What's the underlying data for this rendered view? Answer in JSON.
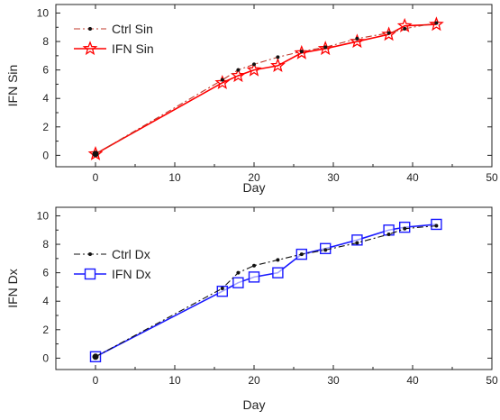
{
  "chart_data": [
    {
      "type": "line",
      "title": "",
      "xlabel": "Day",
      "ylabel": "IFN Sin",
      "xlim": [
        -5,
        50
      ],
      "ylim": [
        -0.8,
        10.6
      ],
      "xticks": [
        0,
        10,
        20,
        30,
        40,
        50
      ],
      "yticks": [
        0,
        2,
        4,
        6,
        8,
        10
      ],
      "legend": "top-left",
      "grid": false,
      "series": [
        {
          "name": "Ctrl Sin",
          "color": "#c0392b",
          "style": "dash-dot",
          "marker": "dot",
          "x": [
            0,
            16,
            18,
            20,
            23,
            26,
            29,
            33,
            37,
            39,
            43
          ],
          "y": [
            0.1,
            5.3,
            6.0,
            6.4,
            6.9,
            7.3,
            7.6,
            8.2,
            8.6,
            8.9,
            9.3
          ]
        },
        {
          "name": "IFN Sin",
          "color": "#ff0000",
          "style": "solid",
          "marker": "star",
          "x": [
            0,
            16,
            18,
            20,
            23,
            26,
            29,
            33,
            37,
            39,
            43
          ],
          "y": [
            0.1,
            5.1,
            5.6,
            6.0,
            6.3,
            7.2,
            7.5,
            8.0,
            8.5,
            9.1,
            9.2
          ]
        }
      ]
    },
    {
      "type": "line",
      "title": "",
      "xlabel": "Day",
      "ylabel": "IFN Dx",
      "xlim": [
        -5,
        50
      ],
      "ylim": [
        -0.8,
        10.6
      ],
      "xticks": [
        0,
        10,
        20,
        30,
        40,
        50
      ],
      "yticks": [
        0,
        2,
        4,
        6,
        8,
        10
      ],
      "legend": "top-left",
      "grid": false,
      "series": [
        {
          "name": "Ctrl Dx",
          "color": "#111111",
          "style": "dash-dot",
          "marker": "dot",
          "x": [
            0,
            16,
            18,
            20,
            23,
            26,
            29,
            33,
            37,
            39,
            43
          ],
          "y": [
            0.1,
            4.9,
            6.0,
            6.5,
            6.9,
            7.3,
            7.6,
            8.1,
            8.7,
            9.1,
            9.3
          ]
        },
        {
          "name": "IFN Dx",
          "color": "#1a1aff",
          "style": "solid",
          "marker": "square",
          "x": [
            0,
            16,
            18,
            20,
            23,
            26,
            29,
            33,
            37,
            39,
            43
          ],
          "y": [
            0.1,
            4.7,
            5.3,
            5.7,
            6.0,
            7.3,
            7.7,
            8.3,
            9.0,
            9.2,
            9.4
          ]
        }
      ]
    }
  ]
}
